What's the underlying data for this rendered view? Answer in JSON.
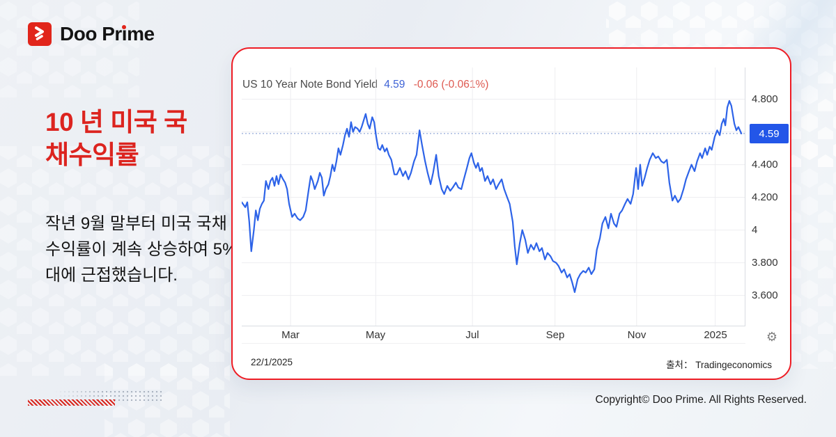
{
  "brand": {
    "logo_pre": "Doo Pr",
    "logo_i": "i",
    "logo_post": "me"
  },
  "intro": {
    "title_lines": [
      "10 년 미국 국",
      "채수익률"
    ],
    "body": "작년 9월 말부터 미국 국채 수익률이 계속 상승하여 5%대에 근접했습니다."
  },
  "chart_card": {
    "title": "US 10 Year Note Bond Yield",
    "last_value": "4.59",
    "change": "-0.06 (-0.061%)",
    "price_badge": "4.59",
    "date": "22/1/2025",
    "source": "출처： Tradingeconomics",
    "gear_icon": "⚙"
  },
  "footer": {
    "copyright": "Copyright© Doo Prime. All Rights Reserved."
  },
  "colors": {
    "accent_red": "#ee1c24",
    "headline_red": "#dc241f",
    "line_blue": "#2d63e8",
    "badge_blue": "#2356e8",
    "value_blue": "#3e63d6",
    "change_red": "#de5950"
  },
  "chart_data": {
    "type": "line",
    "title": "US 10 Year Note Bond Yield",
    "last": 4.59,
    "change": -0.06,
    "change_pct": "-0.061%",
    "ylim": [
      3.411,
      4.994
    ],
    "reference_line": 4.59,
    "grid": true,
    "y_ticks": [
      {
        "label": "4.800",
        "value": 4.8
      },
      {
        "label": "4.400",
        "value": 4.4
      },
      {
        "label": "4.200",
        "value": 4.2
      },
      {
        "label": "4",
        "value": 4.0
      },
      {
        "label": "3.800",
        "value": 3.8
      },
      {
        "label": "3.600",
        "value": 3.6
      }
    ],
    "gridline_values": [
      4.8,
      4.6,
      4.4,
      4.2,
      4.0,
      3.8,
      3.6
    ],
    "x_ticks": [
      {
        "label": "Mar",
        "pos": 0.097
      },
      {
        "label": "May",
        "pos": 0.266
      },
      {
        "label": "Jul",
        "pos": 0.458
      },
      {
        "label": "Sep",
        "pos": 0.622
      },
      {
        "label": "Nov",
        "pos": 0.784
      },
      {
        "label": "2025",
        "pos": 0.94
      }
    ],
    "points": [
      [
        0.0,
        4.17
      ],
      [
        0.007,
        4.14
      ],
      [
        0.011,
        4.17
      ],
      [
        0.015,
        4.05
      ],
      [
        0.019,
        3.87
      ],
      [
        0.024,
        4.0
      ],
      [
        0.028,
        4.12
      ],
      [
        0.032,
        4.06
      ],
      [
        0.036,
        4.13
      ],
      [
        0.04,
        4.16
      ],
      [
        0.044,
        4.18
      ],
      [
        0.048,
        4.3
      ],
      [
        0.053,
        4.25
      ],
      [
        0.057,
        4.3
      ],
      [
        0.061,
        4.32
      ],
      [
        0.065,
        4.27
      ],
      [
        0.069,
        4.33
      ],
      [
        0.073,
        4.28
      ],
      [
        0.077,
        4.34
      ],
      [
        0.082,
        4.31
      ],
      [
        0.086,
        4.29
      ],
      [
        0.09,
        4.25
      ],
      [
        0.094,
        4.16
      ],
      [
        0.1,
        4.08
      ],
      [
        0.105,
        4.1
      ],
      [
        0.111,
        4.07
      ],
      [
        0.116,
        4.06
      ],
      [
        0.122,
        4.08
      ],
      [
        0.127,
        4.12
      ],
      [
        0.133,
        4.25
      ],
      [
        0.137,
        4.33
      ],
      [
        0.141,
        4.3
      ],
      [
        0.145,
        4.25
      ],
      [
        0.151,
        4.3
      ],
      [
        0.155,
        4.35
      ],
      [
        0.159,
        4.32
      ],
      [
        0.163,
        4.21
      ],
      [
        0.167,
        4.25
      ],
      [
        0.172,
        4.28
      ],
      [
        0.176,
        4.33
      ],
      [
        0.18,
        4.4
      ],
      [
        0.184,
        4.36
      ],
      [
        0.188,
        4.42
      ],
      [
        0.192,
        4.5
      ],
      [
        0.196,
        4.46
      ],
      [
        0.201,
        4.52
      ],
      [
        0.205,
        4.58
      ],
      [
        0.209,
        4.62
      ],
      [
        0.213,
        4.57
      ],
      [
        0.217,
        4.66
      ],
      [
        0.221,
        4.6
      ],
      [
        0.225,
        4.63
      ],
      [
        0.23,
        4.62
      ],
      [
        0.234,
        4.6
      ],
      [
        0.238,
        4.63
      ],
      [
        0.242,
        4.67
      ],
      [
        0.246,
        4.71
      ],
      [
        0.25,
        4.65
      ],
      [
        0.254,
        4.62
      ],
      [
        0.259,
        4.69
      ],
      [
        0.263,
        4.66
      ],
      [
        0.267,
        4.57
      ],
      [
        0.271,
        4.5
      ],
      [
        0.275,
        4.49
      ],
      [
        0.279,
        4.52
      ],
      [
        0.284,
        4.48
      ],
      [
        0.288,
        4.5
      ],
      [
        0.292,
        4.46
      ],
      [
        0.297,
        4.43
      ],
      [
        0.303,
        4.34
      ],
      [
        0.308,
        4.34
      ],
      [
        0.314,
        4.38
      ],
      [
        0.32,
        4.33
      ],
      [
        0.325,
        4.36
      ],
      [
        0.331,
        4.31
      ],
      [
        0.336,
        4.35
      ],
      [
        0.342,
        4.42
      ],
      [
        0.347,
        4.46
      ],
      [
        0.353,
        4.61
      ],
      [
        0.358,
        4.52
      ],
      [
        0.364,
        4.42
      ],
      [
        0.369,
        4.35
      ],
      [
        0.375,
        4.28
      ],
      [
        0.38,
        4.35
      ],
      [
        0.386,
        4.46
      ],
      [
        0.391,
        4.33
      ],
      [
        0.397,
        4.25
      ],
      [
        0.402,
        4.22
      ],
      [
        0.408,
        4.27
      ],
      [
        0.414,
        4.24
      ],
      [
        0.419,
        4.26
      ],
      [
        0.425,
        4.29
      ],
      [
        0.43,
        4.26
      ],
      [
        0.436,
        4.25
      ],
      [
        0.441,
        4.31
      ],
      [
        0.447,
        4.38
      ],
      [
        0.452,
        4.44
      ],
      [
        0.456,
        4.47
      ],
      [
        0.461,
        4.41
      ],
      [
        0.465,
        4.38
      ],
      [
        0.469,
        4.41
      ],
      [
        0.473,
        4.36
      ],
      [
        0.477,
        4.38
      ],
      [
        0.483,
        4.3
      ],
      [
        0.488,
        4.33
      ],
      [
        0.494,
        4.28
      ],
      [
        0.499,
        4.31
      ],
      [
        0.505,
        4.25
      ],
      [
        0.51,
        4.28
      ],
      [
        0.516,
        4.31
      ],
      [
        0.521,
        4.25
      ],
      [
        0.527,
        4.2
      ],
      [
        0.532,
        4.16
      ],
      [
        0.538,
        4.05
      ],
      [
        0.542,
        3.9
      ],
      [
        0.546,
        3.79
      ],
      [
        0.552,
        3.92
      ],
      [
        0.557,
        4.0
      ],
      [
        0.563,
        3.94
      ],
      [
        0.568,
        3.86
      ],
      [
        0.574,
        3.91
      ],
      [
        0.58,
        3.88
      ],
      [
        0.585,
        3.92
      ],
      [
        0.591,
        3.87
      ],
      [
        0.596,
        3.89
      ],
      [
        0.602,
        3.82
      ],
      [
        0.607,
        3.86
      ],
      [
        0.613,
        3.84
      ],
      [
        0.618,
        3.81
      ],
      [
        0.624,
        3.8
      ],
      [
        0.629,
        3.78
      ],
      [
        0.635,
        3.74
      ],
      [
        0.64,
        3.76
      ],
      [
        0.646,
        3.71
      ],
      [
        0.651,
        3.73
      ],
      [
        0.656,
        3.68
      ],
      [
        0.661,
        3.62
      ],
      [
        0.667,
        3.7
      ],
      [
        0.672,
        3.73
      ],
      [
        0.678,
        3.75
      ],
      [
        0.683,
        3.74
      ],
      [
        0.689,
        3.77
      ],
      [
        0.694,
        3.73
      ],
      [
        0.7,
        3.76
      ],
      [
        0.705,
        3.88
      ],
      [
        0.711,
        3.95
      ],
      [
        0.716,
        4.04
      ],
      [
        0.722,
        4.08
      ],
      [
        0.728,
        4.01
      ],
      [
        0.733,
        4.1
      ],
      [
        0.739,
        4.04
      ],
      [
        0.744,
        4.02
      ],
      [
        0.75,
        4.1
      ],
      [
        0.755,
        4.12
      ],
      [
        0.761,
        4.16
      ],
      [
        0.766,
        4.19
      ],
      [
        0.772,
        4.16
      ],
      [
        0.777,
        4.22
      ],
      [
        0.783,
        4.38
      ],
      [
        0.787,
        4.25
      ],
      [
        0.791,
        4.4
      ],
      [
        0.795,
        4.27
      ],
      [
        0.8,
        4.32
      ],
      [
        0.805,
        4.38
      ],
      [
        0.81,
        4.43
      ],
      [
        0.816,
        4.47
      ],
      [
        0.822,
        4.44
      ],
      [
        0.827,
        4.45
      ],
      [
        0.833,
        4.42
      ],
      [
        0.838,
        4.41
      ],
      [
        0.844,
        4.43
      ],
      [
        0.849,
        4.29
      ],
      [
        0.855,
        4.18
      ],
      [
        0.86,
        4.21
      ],
      [
        0.866,
        4.17
      ],
      [
        0.871,
        4.19
      ],
      [
        0.877,
        4.25
      ],
      [
        0.882,
        4.31
      ],
      [
        0.888,
        4.36
      ],
      [
        0.893,
        4.4
      ],
      [
        0.899,
        4.36
      ],
      [
        0.904,
        4.42
      ],
      [
        0.91,
        4.47
      ],
      [
        0.914,
        4.44
      ],
      [
        0.92,
        4.5
      ],
      [
        0.924,
        4.46
      ],
      [
        0.929,
        4.51
      ],
      [
        0.933,
        4.49
      ],
      [
        0.939,
        4.57
      ],
      [
        0.944,
        4.61
      ],
      [
        0.949,
        4.58
      ],
      [
        0.953,
        4.65
      ],
      [
        0.957,
        4.68
      ],
      [
        0.96,
        4.64
      ],
      [
        0.964,
        4.75
      ],
      [
        0.968,
        4.79
      ],
      [
        0.972,
        4.76
      ],
      [
        0.978,
        4.65
      ],
      [
        0.982,
        4.61
      ],
      [
        0.986,
        4.63
      ],
      [
        0.992,
        4.59
      ]
    ]
  }
}
